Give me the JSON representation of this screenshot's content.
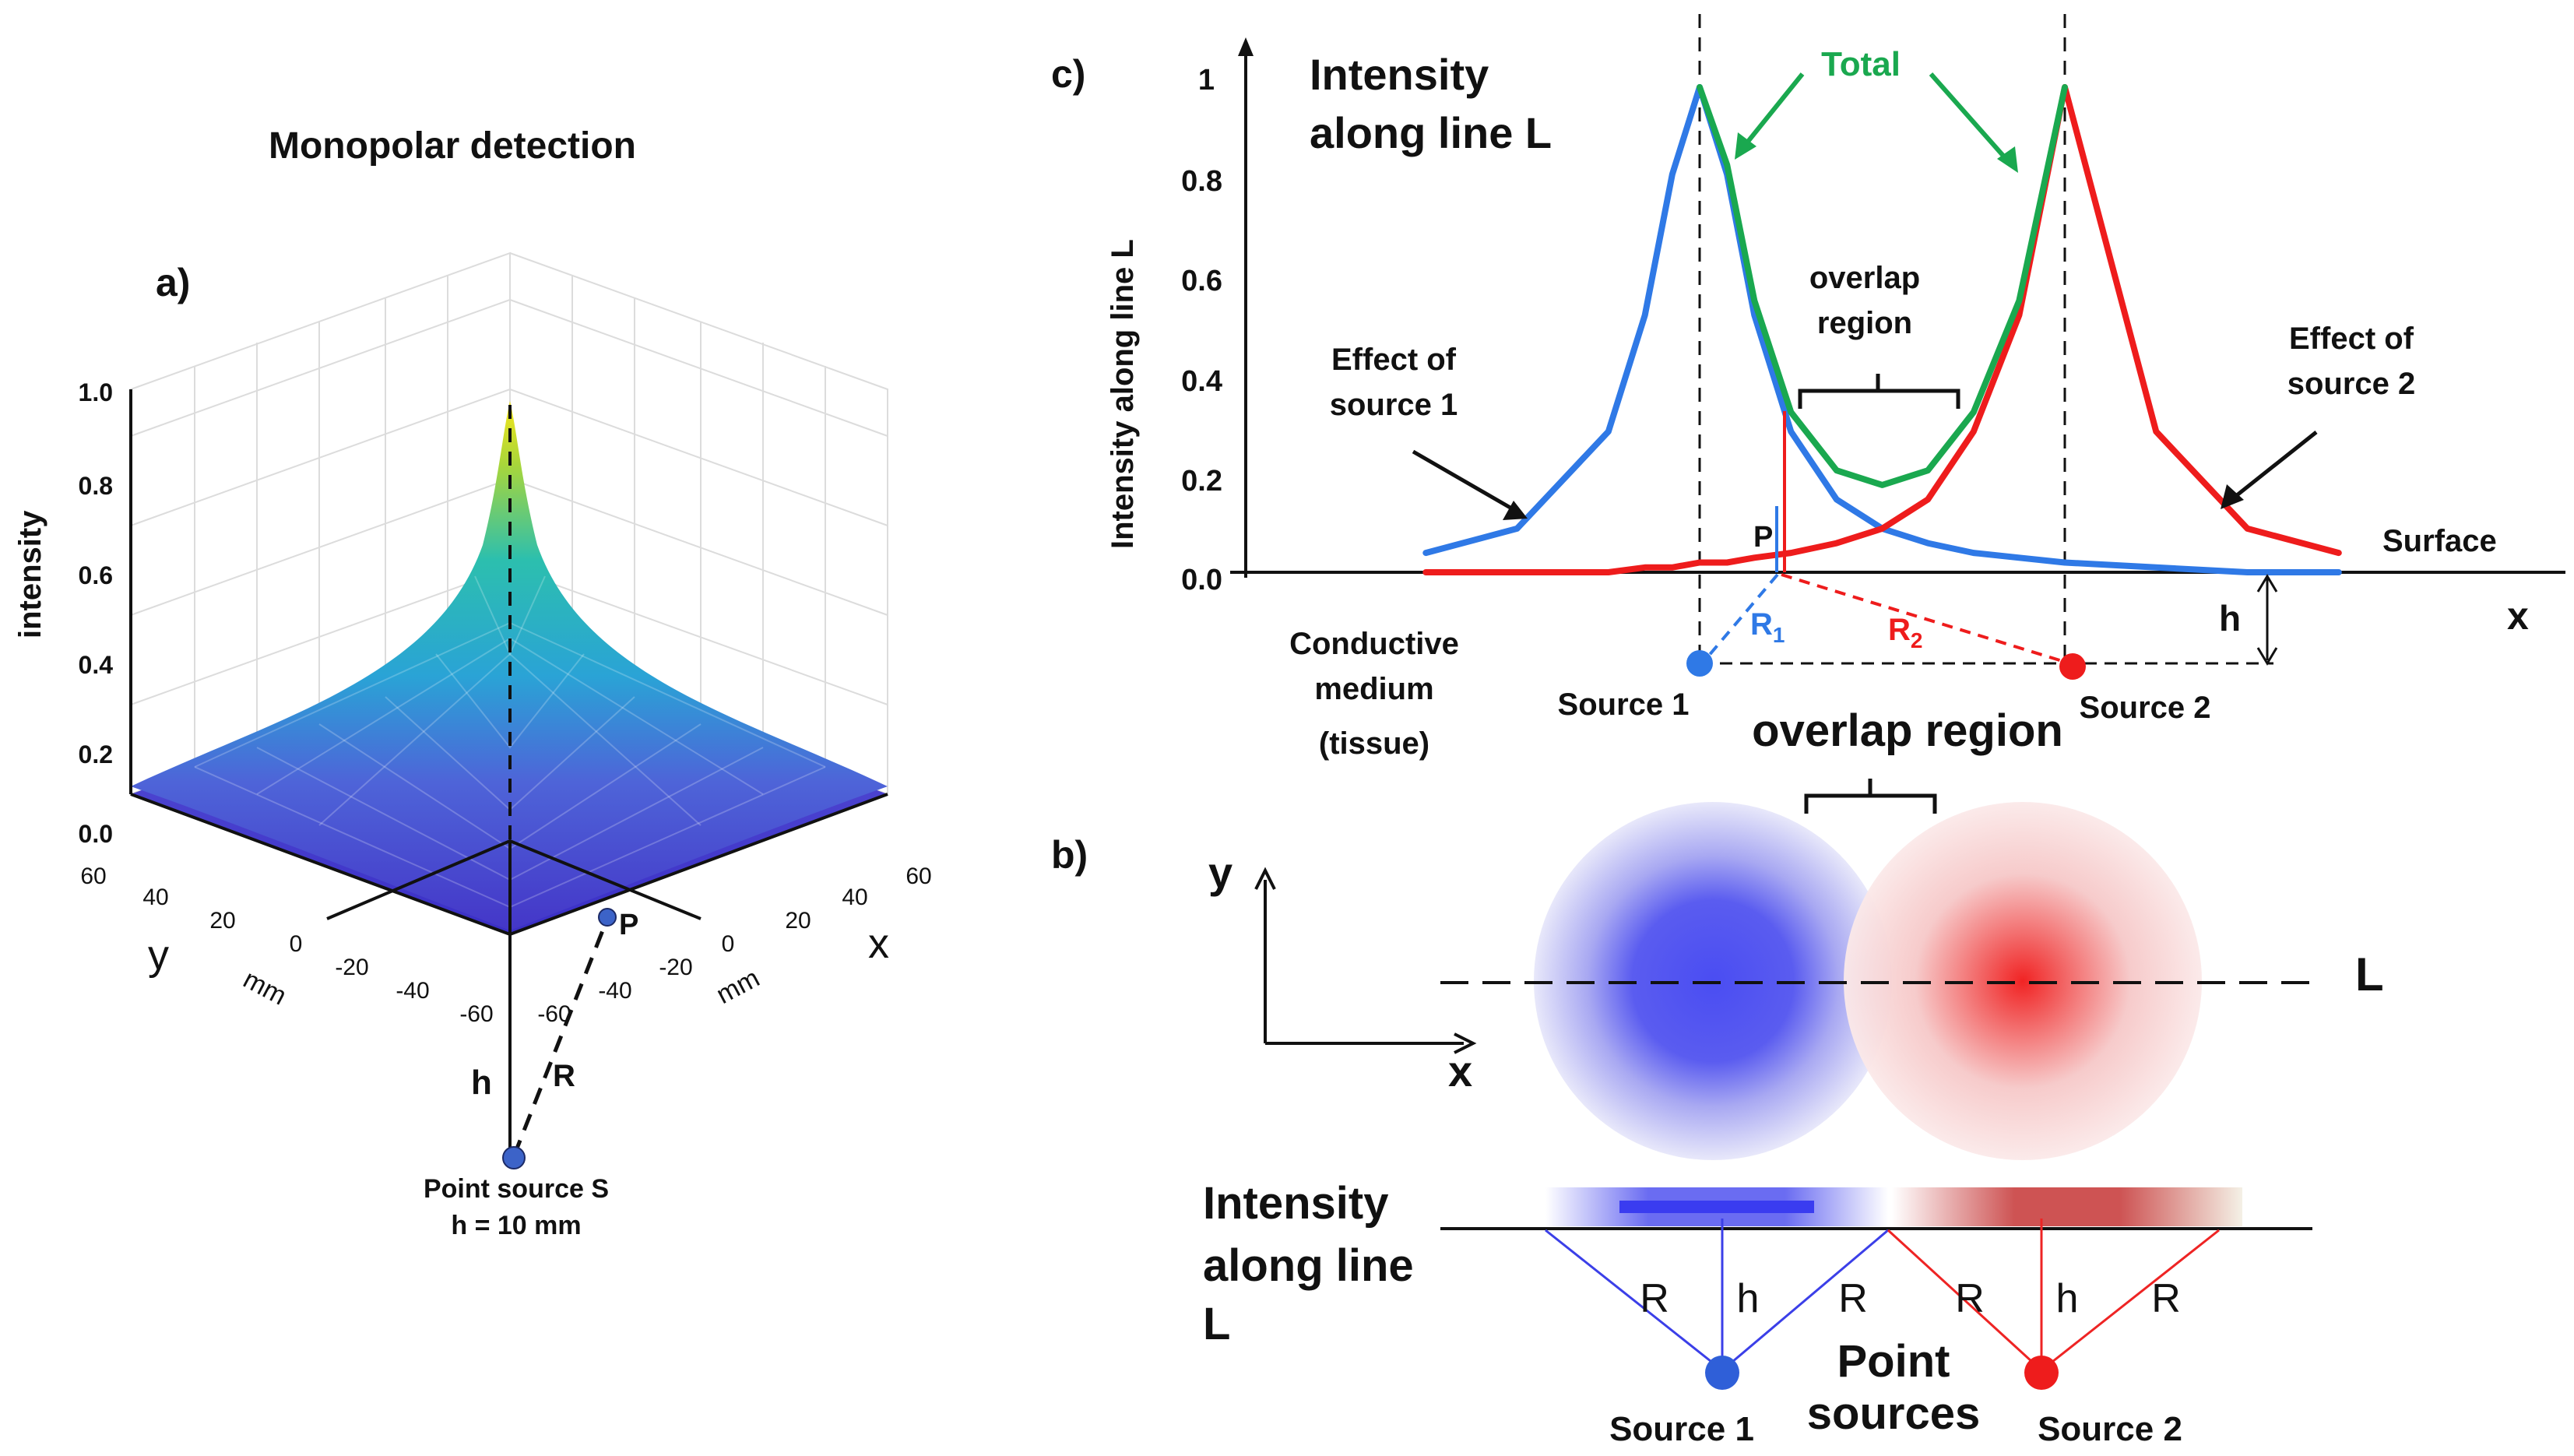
{
  "panel_a": {
    "panel_label": "a)",
    "title": "Monopolar detection",
    "z_label": "intensity",
    "z_ticks": [
      "0.0",
      "0.2",
      "0.4",
      "0.6",
      "0.8",
      "1.0"
    ],
    "y_ticks": [
      "60",
      "40",
      "20",
      "0",
      "-20",
      "-40",
      "-60"
    ],
    "x_ticks": [
      "-60",
      "-40",
      "-20",
      "0",
      "20",
      "40",
      "60"
    ],
    "y_axis": "y",
    "x_axis": "x",
    "y_unit": "mm",
    "x_unit": "mm",
    "point_label": "P",
    "h_label": "h",
    "r_label": "R",
    "source_caption_line1": "Point source S",
    "source_caption_line2": "h = 10 mm",
    "surface_colors": {
      "peak": "#f4e21b",
      "mid": "#27b7b4",
      "low": "#5145c9",
      "base": "#3a2fd0"
    }
  },
  "panel_c": {
    "panel_label": "c)",
    "heading_line1": "Intensity",
    "heading_line2": "along line L",
    "y_label": "Intensity along line L",
    "y_ticks": [
      "0.0",
      "0.2",
      "0.4",
      "0.6",
      "0.8",
      "1"
    ],
    "total_label": "Total",
    "overlap_line1": "overlap",
    "overlap_line2": "region",
    "effect1_line1": "Effect of",
    "effect1_line2": "source 1",
    "effect2_line1": "Effect of",
    "effect2_line2": "source 2",
    "surface_label": "Surface",
    "p_label": "P",
    "r1_label": "R",
    "r1_sub": "1",
    "r2_label": "R",
    "r2_sub": "2",
    "h_label": "h",
    "x_axis": "x",
    "medium_line1": "Conductive",
    "medium_line2": "medium",
    "medium_line3": "(tissue)",
    "source1_label": "Source 1",
    "source2_label": "Source 2",
    "colors": {
      "source1": "#2f79e6",
      "source2": "#ee1c1c",
      "total": "#1aa84f"
    }
  },
  "panel_b": {
    "panel_label": "b)",
    "overlap_title": "overlap region",
    "y_axis": "y",
    "x_axis": "x",
    "line_label": "L",
    "intensity_line1": "Intensity",
    "intensity_line2": "along line",
    "intensity_line3": "L",
    "r_label": "R",
    "h_label": "h",
    "point_sources_line1": "Point",
    "point_sources_line2": "sources",
    "source1_label": "Source 1",
    "source2_label": "Source 2",
    "colors": {
      "source1": "#4a4df2",
      "source2": "#ee2424"
    }
  },
  "chart_data": {
    "type": "line",
    "title": "Intensity along line L",
    "xlabel": "x",
    "ylabel": "Intensity along line L",
    "ylim": [
      0,
      1
    ],
    "x": [
      -1.5,
      -1.0,
      -0.5,
      -0.3,
      -0.15,
      0,
      0.15,
      0.3,
      0.5,
      0.75,
      1.0,
      1.25,
      1.5,
      1.75,
      2.0,
      2.5,
      3.0,
      3.5
    ],
    "series": [
      {
        "name": "Effect of source 1",
        "values": [
          0.04,
          0.09,
          0.29,
          0.53,
          0.82,
          1.0,
          0.82,
          0.53,
          0.29,
          0.15,
          0.09,
          0.06,
          0.04,
          0.03,
          0.02,
          0.01,
          0.0,
          0.0
        ]
      },
      {
        "name": "Effect of source 2",
        "values": [
          0.0,
          0.0,
          0.0,
          0.01,
          0.01,
          0.02,
          0.02,
          0.03,
          0.04,
          0.06,
          0.09,
          0.15,
          0.29,
          0.53,
          1.0,
          0.29,
          0.09,
          0.04
        ]
      },
      {
        "name": "Total",
        "values": [
          null,
          null,
          null,
          null,
          null,
          1.0,
          0.84,
          0.56,
          0.33,
          0.21,
          0.18,
          0.21,
          0.33,
          0.56,
          1.0,
          null,
          null,
          null
        ]
      }
    ]
  }
}
